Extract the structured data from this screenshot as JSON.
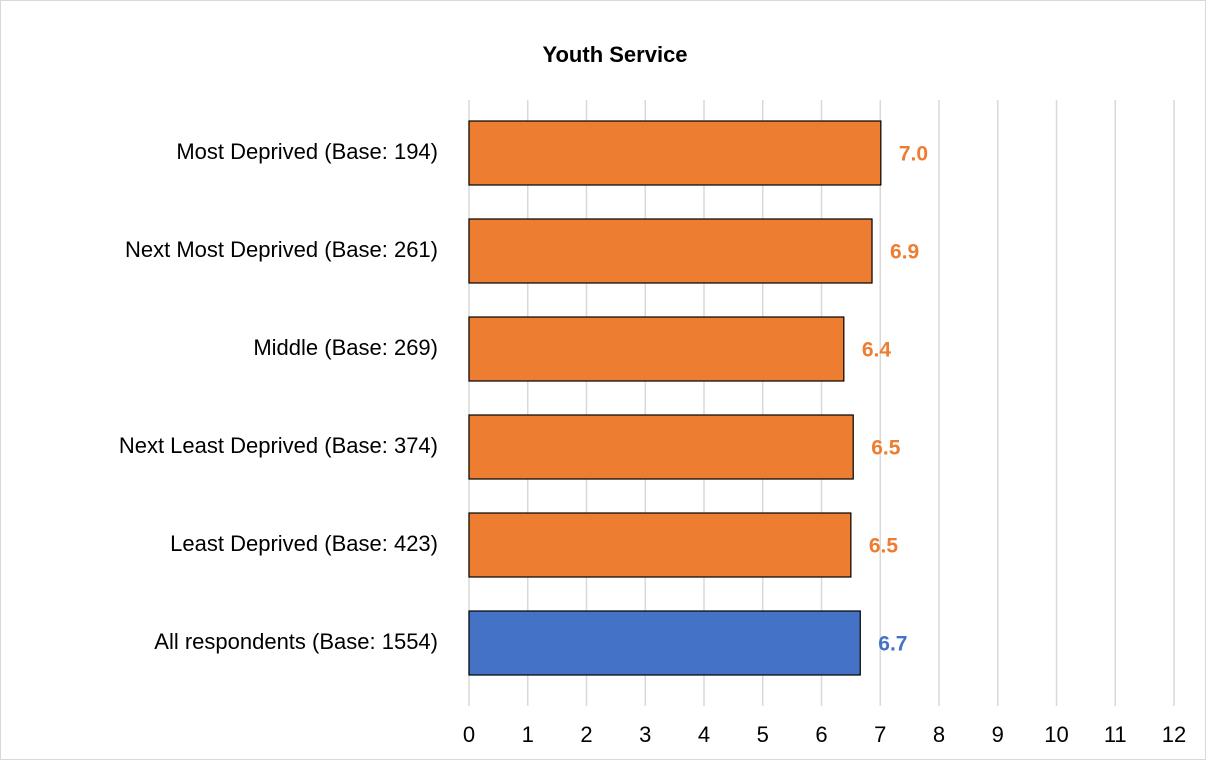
{
  "chart_data": {
    "type": "bar",
    "orientation": "horizontal",
    "title": "Youth Service",
    "categories": [
      "Most Deprived (Base: 194)",
      "Next Most Deprived (Base: 261)",
      "Middle (Base: 269)",
      "Next Least Deprived (Base: 374)",
      "Least Deprived (Base: 423)",
      "All respondents (Base: 1554)"
    ],
    "values": [
      7.01,
      6.86,
      6.38,
      6.54,
      6.5,
      6.66
    ],
    "value_labels": [
      "7.0",
      "6.9",
      "6.4",
      "6.5",
      "6.5",
      "6.7"
    ],
    "colors": [
      "#ed7d31",
      "#ed7d31",
      "#ed7d31",
      "#ed7d31",
      "#ed7d31",
      "#4472c4"
    ],
    "xlim": [
      0,
      12
    ],
    "xticks": [
      0,
      1,
      2,
      3,
      4,
      5,
      6,
      7,
      8,
      9,
      10,
      11,
      12
    ],
    "grid": true
  }
}
